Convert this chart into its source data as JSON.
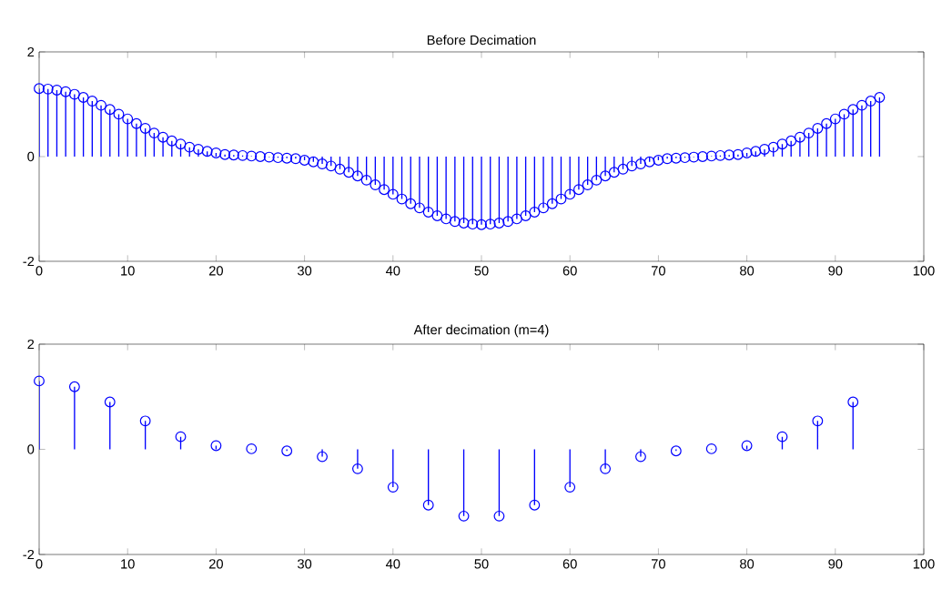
{
  "chart_data": [
    {
      "type": "lollipop",
      "title": "Before Decimation",
      "xlim": [
        0,
        100
      ],
      "ylim": [
        -2,
        2
      ],
      "xticks": [
        0,
        10,
        20,
        30,
        40,
        50,
        60,
        70,
        80,
        90,
        100
      ],
      "yticks": [
        -2,
        0,
        2
      ],
      "marker": "circle",
      "color": "#0000ff",
      "x": [
        0,
        1,
        2,
        3,
        4,
        5,
        6,
        7,
        8,
        9,
        10,
        11,
        12,
        13,
        14,
        15,
        16,
        17,
        18,
        19,
        20,
        21,
        22,
        23,
        24,
        25,
        26,
        27,
        28,
        29,
        30,
        31,
        32,
        33,
        34,
        35,
        36,
        37,
        38,
        39,
        40,
        41,
        42,
        43,
        44,
        45,
        46,
        47,
        48,
        49,
        50,
        51,
        52,
        53,
        54,
        55,
        56,
        57,
        58,
        59,
        60,
        61,
        62,
        63,
        64,
        65,
        66,
        67,
        68,
        69,
        70,
        71,
        72,
        73,
        74,
        75,
        76,
        77,
        78,
        79,
        80,
        81,
        82,
        83,
        84,
        85,
        86,
        87,
        88,
        89,
        90,
        91,
        92,
        93,
        94,
        95
      ],
      "values": [
        1.3,
        1.29,
        1.27,
        1.24,
        1.19,
        1.13,
        1.06,
        0.98,
        0.9,
        0.81,
        0.72,
        0.63,
        0.54,
        0.45,
        0.37,
        0.3,
        0.24,
        0.18,
        0.14,
        0.1,
        0.07,
        0.04,
        0.03,
        0.02,
        0.01,
        0,
        -0.01,
        -0.02,
        -0.03,
        -0.04,
        -0.07,
        -0.1,
        -0.14,
        -0.18,
        -0.24,
        -0.3,
        -0.37,
        -0.45,
        -0.54,
        -0.63,
        -0.72,
        -0.81,
        -0.9,
        -0.98,
        -1.06,
        -1.13,
        -1.19,
        -1.24,
        -1.27,
        -1.29,
        -1.3,
        -1.29,
        -1.27,
        -1.24,
        -1.19,
        -1.13,
        -1.06,
        -0.98,
        -0.9,
        -0.81,
        -0.72,
        -0.63,
        -0.54,
        -0.45,
        -0.37,
        -0.3,
        -0.24,
        -0.18,
        -0.14,
        -0.1,
        -0.07,
        -0.04,
        -0.03,
        -0.02,
        -0.01,
        0,
        0.01,
        0.02,
        0.03,
        0.04,
        0.07,
        0.1,
        0.14,
        0.18,
        0.24,
        0.3,
        0.37,
        0.45,
        0.54,
        0.63,
        0.72,
        0.81,
        0.9,
        0.98,
        1.06,
        1.13
      ]
    },
    {
      "type": "lollipop",
      "title": "After decimation (m=4)",
      "xlim": [
        0,
        100
      ],
      "ylim": [
        -2,
        2
      ],
      "xticks": [
        0,
        10,
        20,
        30,
        40,
        50,
        60,
        70,
        80,
        90,
        100
      ],
      "yticks": [
        -2,
        0,
        2
      ],
      "marker": "circle",
      "color": "#0000ff",
      "x": [
        0,
        4,
        8,
        12,
        16,
        20,
        24,
        28,
        32,
        36,
        40,
        44,
        48,
        52,
        56,
        60,
        64,
        68,
        72,
        76,
        80,
        84,
        88,
        92
      ],
      "values": [
        1.3,
        1.19,
        0.9,
        0.54,
        0.24,
        0.07,
        0.01,
        -0.03,
        -0.14,
        -0.37,
        -0.72,
        -1.06,
        -1.27,
        -1.27,
        -1.06,
        -0.72,
        -0.37,
        -0.14,
        -0.03,
        0.01,
        0.07,
        0.24,
        0.54,
        0.9
      ]
    }
  ]
}
